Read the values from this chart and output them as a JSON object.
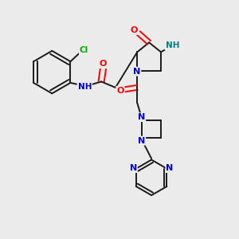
{
  "background_color": "#ebebeb",
  "bond_color": "#1a1a1a",
  "atom_colors": {
    "O": "#ff0000",
    "N": "#0000cc",
    "NH": "#008080",
    "Cl": "#00aa00",
    "C": "#1a1a1a"
  }
}
